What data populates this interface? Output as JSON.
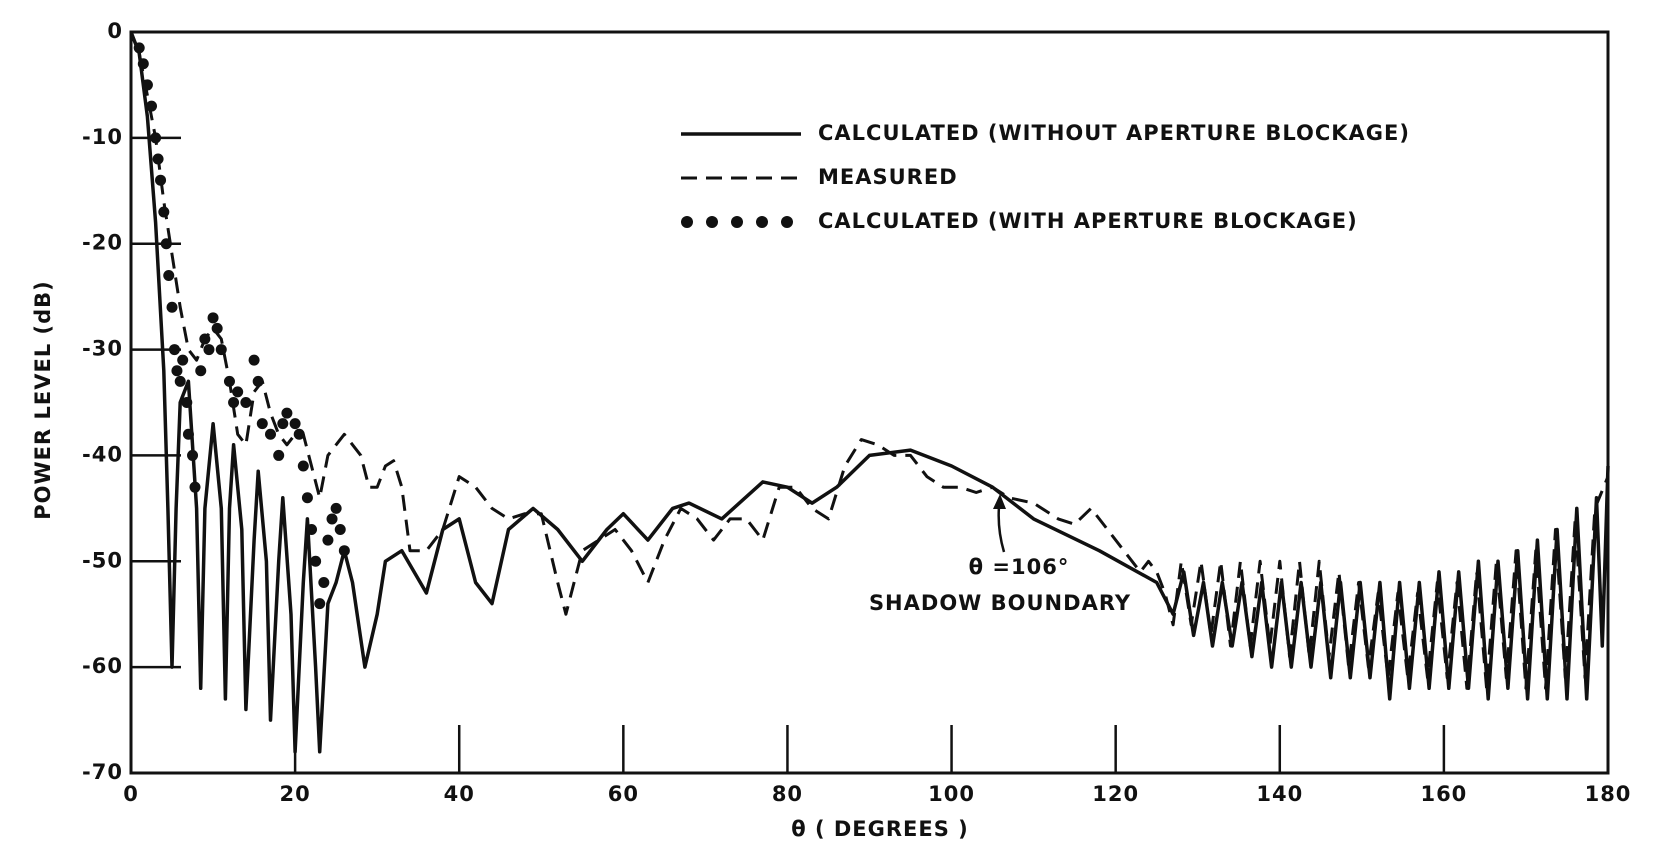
{
  "chart_data": {
    "type": "line",
    "xlabel": "θ ( DEGREES )",
    "ylabel": "POWER LEVEL (dB)",
    "xlim": [
      0,
      180
    ],
    "ylim": [
      -70,
      0
    ],
    "xticks": [
      0,
      20,
      40,
      60,
      80,
      100,
      120,
      140,
      160,
      180
    ],
    "yticks": [
      0,
      -10,
      -20,
      -30,
      -40,
      -50,
      -60,
      -70
    ],
    "grid": false,
    "legend": "upper right",
    "annotations": [
      "θ =106°",
      "SHADOW BOUNDARY"
    ],
    "series": [
      {
        "name": "CALCULATED (WITHOUT APERTURE BLOCKAGE)",
        "color": "#111111",
        "style": "solid",
        "x": [
          0,
          1,
          2,
          3,
          4,
          4.5,
          5,
          5.5,
          6,
          7,
          8,
          8.5,
          9,
          10,
          11,
          11.5,
          12,
          12.5,
          13.5,
          14,
          15,
          15.5,
          16.5,
          17,
          18,
          18.5,
          19.5,
          20,
          21,
          21.5,
          22.5,
          23,
          24,
          25,
          26,
          27,
          28.5,
          30,
          31,
          33,
          36,
          38,
          40,
          42,
          44,
          46,
          49,
          52,
          55,
          58,
          60,
          63,
          66,
          68,
          72,
          77,
          80,
          83,
          86,
          90,
          95,
          100,
          105,
          110,
          118,
          125,
          127,
          128.3,
          129.5,
          130.7,
          131.8,
          133,
          134.2,
          135.4,
          136.6,
          137.8,
          139,
          140.2,
          141.4,
          142.6,
          143.8,
          145,
          146.2,
          147.4,
          148.6,
          149.8,
          151,
          152.2,
          153.4,
          154.6,
          155.8,
          157,
          158.2,
          159.4,
          160.6,
          161.8,
          163,
          164.2,
          165.4,
          166.6,
          167.8,
          169,
          170.2,
          171.4,
          172.6,
          173.8,
          175,
          176.2,
          177.4,
          178.6,
          179.3,
          180
        ],
        "values": [
          0,
          -2,
          -8,
          -18,
          -32,
          -45,
          -60,
          -45,
          -35,
          -33,
          -45,
          -62,
          -45,
          -37,
          -45,
          -63,
          -45,
          -39,
          -47,
          -64,
          -48,
          -41.5,
          -50,
          -65,
          -50,
          -44,
          -55,
          -68,
          -52,
          -46,
          -60,
          -68,
          -54,
          -52,
          -49,
          -52,
          -60,
          -55,
          -50,
          -49,
          -53,
          -47,
          -46,
          -52,
          -54,
          -47,
          -45,
          -47,
          -50,
          -47,
          -45.5,
          -48,
          -45,
          -44.5,
          -46,
          -42.5,
          -43,
          -44.5,
          -43,
          -40,
          -39.5,
          -41,
          -43,
          -46,
          -49,
          -52,
          -55,
          -51,
          -57,
          -52,
          -58,
          -52,
          -58,
          -52,
          -59,
          -52,
          -60,
          -52,
          -60,
          -52,
          -60,
          -52,
          -61,
          -52,
          -61,
          -52,
          -61,
          -52,
          -63,
          -52,
          -62,
          -52,
          -62,
          -51,
          -62,
          -51,
          -62,
          -50,
          -63,
          -50,
          -62,
          -49,
          -63,
          -48,
          -63,
          -47,
          -63,
          -45,
          -63,
          -44,
          -58,
          -41
        ]
      },
      {
        "name": "MEASURED",
        "color": "#111111",
        "style": "dashed",
        "x": [
          0,
          1,
          2,
          3,
          4,
          5,
          6,
          7,
          8,
          9,
          10,
          11,
          12,
          13,
          14,
          15,
          16,
          17,
          18,
          19,
          20,
          21,
          22,
          23,
          24,
          25,
          26,
          28,
          29,
          30,
          31,
          32,
          33,
          34,
          36,
          38,
          40,
          42,
          44,
          46,
          48,
          50,
          52,
          53,
          55,
          57,
          59,
          61,
          63,
          65,
          67,
          69,
          71,
          73,
          75,
          77,
          79,
          81,
          83,
          85,
          87,
          89,
          91,
          93,
          95,
          97,
          99,
          101,
          103,
          105,
          107,
          110,
          113,
          115,
          117,
          119,
          121,
          123,
          124,
          125,
          126,
          127,
          128,
          129.2,
          130.4,
          131.6,
          132.8,
          134,
          135.2,
          136.4,
          137.6,
          138.8,
          140,
          141.2,
          142.4,
          143.6,
          144.8,
          146,
          147.2,
          148.4,
          149.6,
          150.8,
          152,
          153.2,
          154.4,
          155.6,
          156.8,
          158,
          159.2,
          160.4,
          161.6,
          162.8,
          164,
          165.2,
          166.4,
          167.6,
          168.8,
          170,
          171.2,
          172.4,
          173.6,
          174.8,
          176,
          177.2,
          178.4,
          180
        ],
        "values": [
          0,
          -2,
          -6,
          -10,
          -16,
          -21,
          -26,
          -30,
          -31,
          -29,
          -28,
          -29,
          -33,
          -38,
          -39,
          -34,
          -33,
          -36,
          -38,
          -39,
          -38,
          -38,
          -41,
          -44,
          -40,
          -39,
          -38,
          -40,
          -43,
          -43,
          -41,
          -40.5,
          -43,
          -49,
          -49,
          -47,
          -42,
          -43,
          -45,
          -46,
          -45.5,
          -45.5,
          -52,
          -55,
          -49,
          -48,
          -47,
          -49,
          -52,
          -48,
          -45,
          -46,
          -48,
          -46,
          -46,
          -48,
          -43,
          -43,
          -45,
          -46,
          -41,
          -38.5,
          -39,
          -40,
          -40,
          -42,
          -43,
          -43,
          -43.5,
          -43,
          -44,
          -44.5,
          -46,
          -46.5,
          -45,
          -47,
          -49,
          -51,
          -50,
          -51,
          -53,
          -56,
          -50,
          -56,
          -50,
          -57,
          -50,
          -58,
          -50,
          -58,
          -50,
          -58,
          -50,
          -59,
          -50,
          -59,
          -50,
          -59,
          -51,
          -60,
          -52,
          -60,
          -53,
          -61,
          -53,
          -61,
          -53,
          -61,
          -52,
          -61,
          -52,
          -62,
          -51,
          -62,
          -50,
          -61,
          -49,
          -62,
          -49,
          -62,
          -47,
          -61,
          -46,
          -61,
          -45,
          -42
        ]
      },
      {
        "name": "CALCULATED (WITH APERTURE BLOCKAGE)",
        "color": "#111111",
        "style": "markers",
        "x": [
          1,
          1.5,
          2,
          2.5,
          3,
          3.3,
          3.6,
          4,
          4.3,
          4.6,
          5,
          5.3,
          5.6,
          6,
          6.3,
          6.8,
          7,
          7.5,
          7.8,
          8.5,
          9,
          9.5,
          10,
          10.5,
          11,
          12,
          12.5,
          13,
          14,
          15,
          15.5,
          16,
          17,
          18,
          18.5,
          19,
          20,
          20.5,
          21,
          21.5,
          22,
          22.5,
          23,
          23.5,
          24,
          24.5,
          25,
          25.5,
          26
        ],
        "values": [
          -1.5,
          -3,
          -5,
          -7,
          -10,
          -12,
          -14,
          -17,
          -20,
          -23,
          -26,
          -30,
          -32,
          -33,
          -31,
          -35,
          -38,
          -40,
          -43,
          -32,
          -29,
          -30,
          -27,
          -28,
          -30,
          -33,
          -35,
          -34,
          -35,
          -31,
          -33,
          -37,
          -38,
          -40,
          -37,
          -36,
          -37,
          -38,
          -41,
          -44,
          -47,
          -50,
          -54,
          -52,
          -48,
          -46,
          -45,
          -47,
          -49
        ]
      }
    ]
  }
}
